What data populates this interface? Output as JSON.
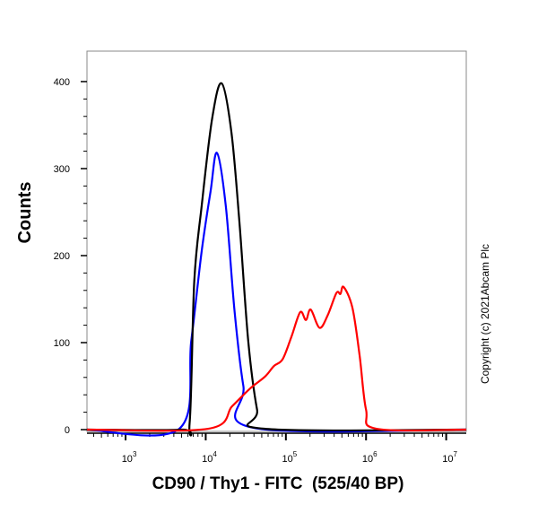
{
  "chart_data": {
    "type": "line",
    "title": "",
    "xlabel": "CD90 / Thy1 - FITC  (525/40 BP)",
    "ylabel": "Counts",
    "x_scale": "log",
    "xlim": [
      330,
      17800000
    ],
    "ylim": [
      0,
      435
    ],
    "x_ticks": [
      {
        "exp": "3",
        "value": 1000
      },
      {
        "exp": "4",
        "value": 10000
      },
      {
        "exp": "5",
        "value": 100000
      },
      {
        "exp": "6",
        "value": 1000000
      },
      {
        "exp": "7",
        "value": 10000000
      }
    ],
    "x_tick_base": "10",
    "y_ticks": [
      "0",
      "100",
      "200",
      "300",
      "400"
    ],
    "y_tick_values": [
      0,
      100,
      200,
      300,
      400
    ],
    "grid": false,
    "legend": "none",
    "series": [
      {
        "color": "#0000ff",
        "x": [
          330,
          4680,
          6600,
          8900,
          11500,
          13800,
          17800,
          22900,
          29500,
          39800,
          17800000
        ],
        "y": [
          0,
          1,
          102,
          205,
          274,
          318,
          257,
          136,
          50,
          2,
          0
        ]
      },
      {
        "color": "#000000",
        "x": [
          330,
          5000,
          6300,
          7200,
          8900,
          12000,
          15800,
          20900,
          26300,
          33900,
          43700,
          53700,
          17800000
        ],
        "y": [
          0,
          0,
          8,
          171,
          257,
          357,
          398,
          342,
          239,
          102,
          23,
          1,
          0
        ]
      },
      {
        "color": "#ff0000",
        "x": [
          330,
          10700,
          21400,
          35500,
          55000,
          70800,
          91200,
          117500,
          151000,
          178000,
          204000,
          263000,
          331000,
          427000,
          479000,
          525000,
          676000,
          832000,
          1000000,
          1350000,
          17800000
        ],
        "y": [
          0,
          1,
          27,
          47,
          61,
          73,
          81,
          107,
          135,
          126,
          138,
          117,
          131,
          157,
          156,
          164,
          140,
          85,
          23,
          1,
          0
        ]
      }
    ]
  },
  "copyright": "Copyright (c) 2021Abcam Plc"
}
